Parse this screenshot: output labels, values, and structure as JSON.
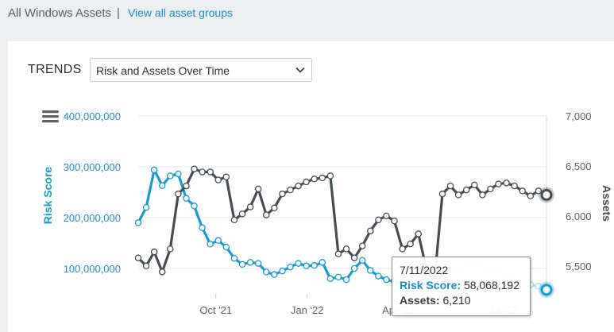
{
  "header": {
    "title": "All Windows Assets",
    "separator": "|",
    "link": "View all asset groups"
  },
  "trends": {
    "label": "TRENDS",
    "select_value": "Risk and Assets Over Time"
  },
  "colors": {
    "risk": "#1a9bd0",
    "risk_faded": "#a9dcef",
    "assets": "#454c54",
    "left_axis": "#2f8fbf",
    "right_axis": "#5a6169"
  },
  "tooltip": {
    "date": "7/11/2022",
    "risk_label": "Risk Score:",
    "risk_value": "58,068,192",
    "assets_label": "Assets:",
    "assets_value": "6,210"
  },
  "chart_data": {
    "type": "line",
    "left_axis": {
      "label": "Risk Score",
      "ticks": [
        "400,000,000",
        "300,000,000",
        "200,000,000",
        "100,000,000"
      ],
      "range": [
        50000000,
        400000000
      ]
    },
    "right_axis": {
      "label": "Assets",
      "ticks": [
        "7,000",
        "6,500",
        "6,000",
        "5,500"
      ],
      "range": [
        5220,
        7000
      ]
    },
    "x_ticks": [
      "Oct '21",
      "Jan '22",
      "Apr '22",
      "Jul '22"
    ],
    "x_range": [
      0,
      51
    ],
    "x_tick_positions": [
      9.7,
      21.1,
      32.5,
      45.5
    ],
    "series": [
      {
        "name": "Risk Score",
        "axis": "left",
        "values": [
          190000000,
          220000000,
          294000000,
          263000000,
          282000000,
          286000000,
          238000000,
          223000000,
          180000000,
          148000000,
          155000000,
          142000000,
          120000000,
          108000000,
          112000000,
          110000000,
          93000000,
          88000000,
          95000000,
          103000000,
          110000000,
          105000000,
          106000000,
          112000000,
          80000000,
          83000000,
          78000000,
          100000000,
          116000000,
          96000000,
          85000000,
          78000000,
          74000000,
          70000000,
          72000000,
          68000000,
          75000000,
          83000000,
          90000000,
          106000000,
          98000000,
          108000000,
          112000000,
          104000000,
          100000000,
          92000000,
          85000000,
          78000000,
          72000000,
          68000000,
          65000000,
          58068192
        ]
      },
      {
        "name": "Assets",
        "axis": "right",
        "values": [
          5580,
          5500,
          5640,
          5440,
          5670,
          6220,
          6300,
          6470,
          6440,
          6440,
          6360,
          6390,
          5960,
          6020,
          6090,
          6270,
          6010,
          6080,
          6220,
          6260,
          6300,
          6340,
          6370,
          6380,
          6400,
          5620,
          5670,
          5580,
          5700,
          5850,
          5960,
          6000,
          5950,
          5670,
          5720,
          5820,
          5470,
          5350,
          6220,
          6300,
          6210,
          6260,
          6310,
          6210,
          6270,
          6320,
          6330,
          6300,
          6250,
          6200,
          6250,
          6210
        ]
      }
    ]
  }
}
